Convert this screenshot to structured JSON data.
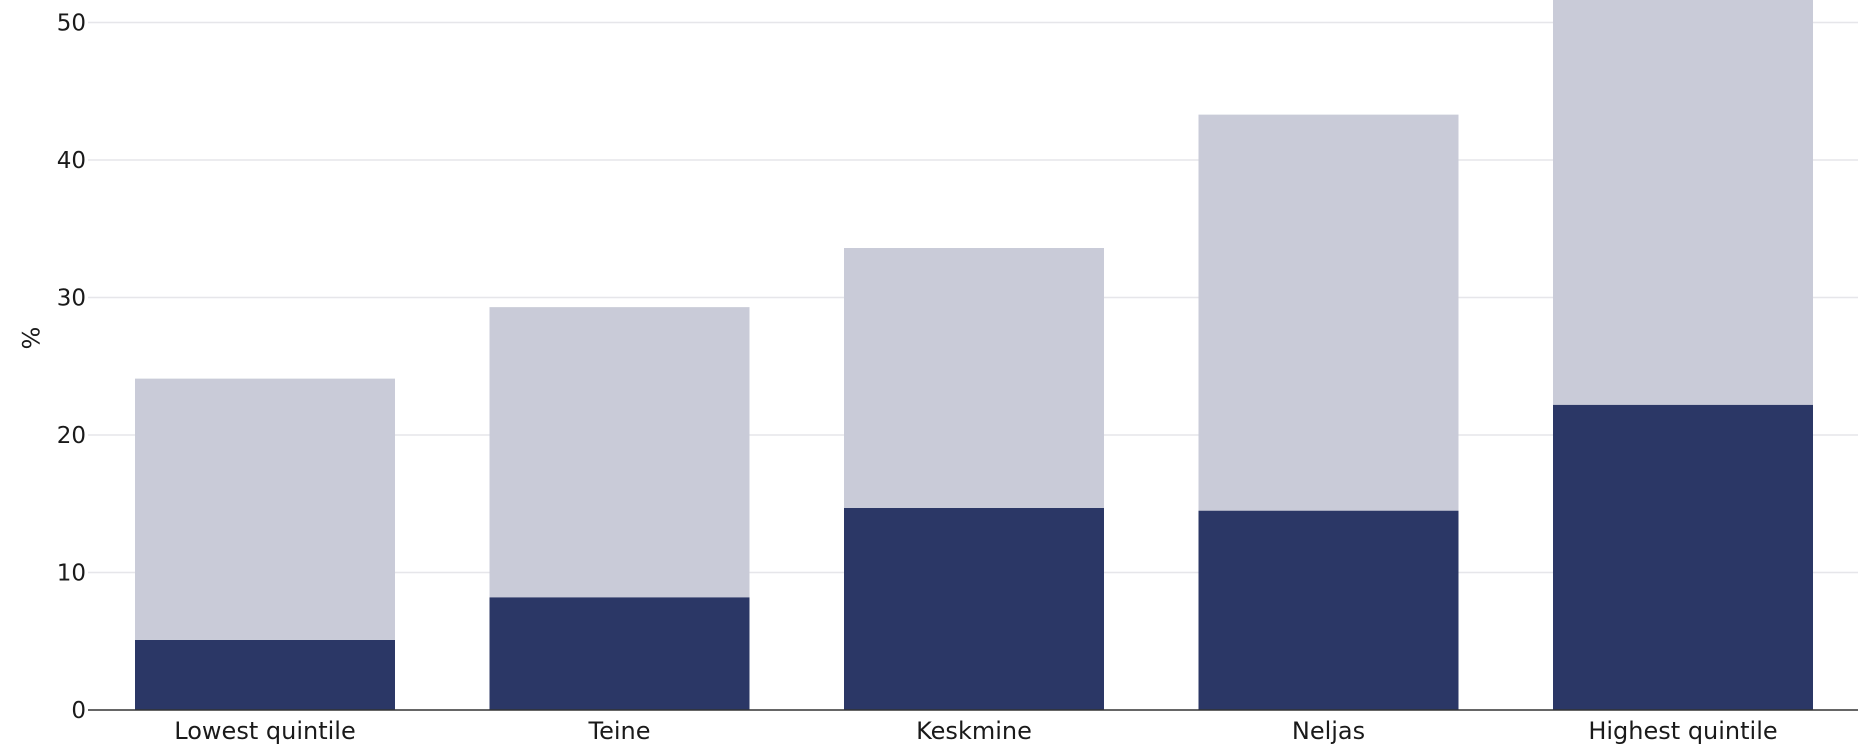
{
  "chart_data": {
    "type": "bar",
    "stacked": true,
    "categories": [
      "Lowest quintile",
      "Teine",
      "Keskmine",
      "Neljas",
      "Highest quintile"
    ],
    "series": [
      {
        "color": "#2b3766",
        "values": [
          5.1,
          8.2,
          14.7,
          14.5,
          22.2
        ]
      },
      {
        "color": "#c9cbd8",
        "values": [
          19.0,
          21.1,
          18.9,
          28.8,
          29.5
        ]
      }
    ],
    "totals": [
      24.1,
      29.3,
      33.6,
      43.3,
      51.7
    ],
    "title": "",
    "xlabel": "",
    "ylabel": "%",
    "ylim": [
      0,
      52
    ],
    "yticks": [
      0,
      10,
      20,
      30,
      40,
      50
    ],
    "grid": true,
    "legend": "none"
  }
}
